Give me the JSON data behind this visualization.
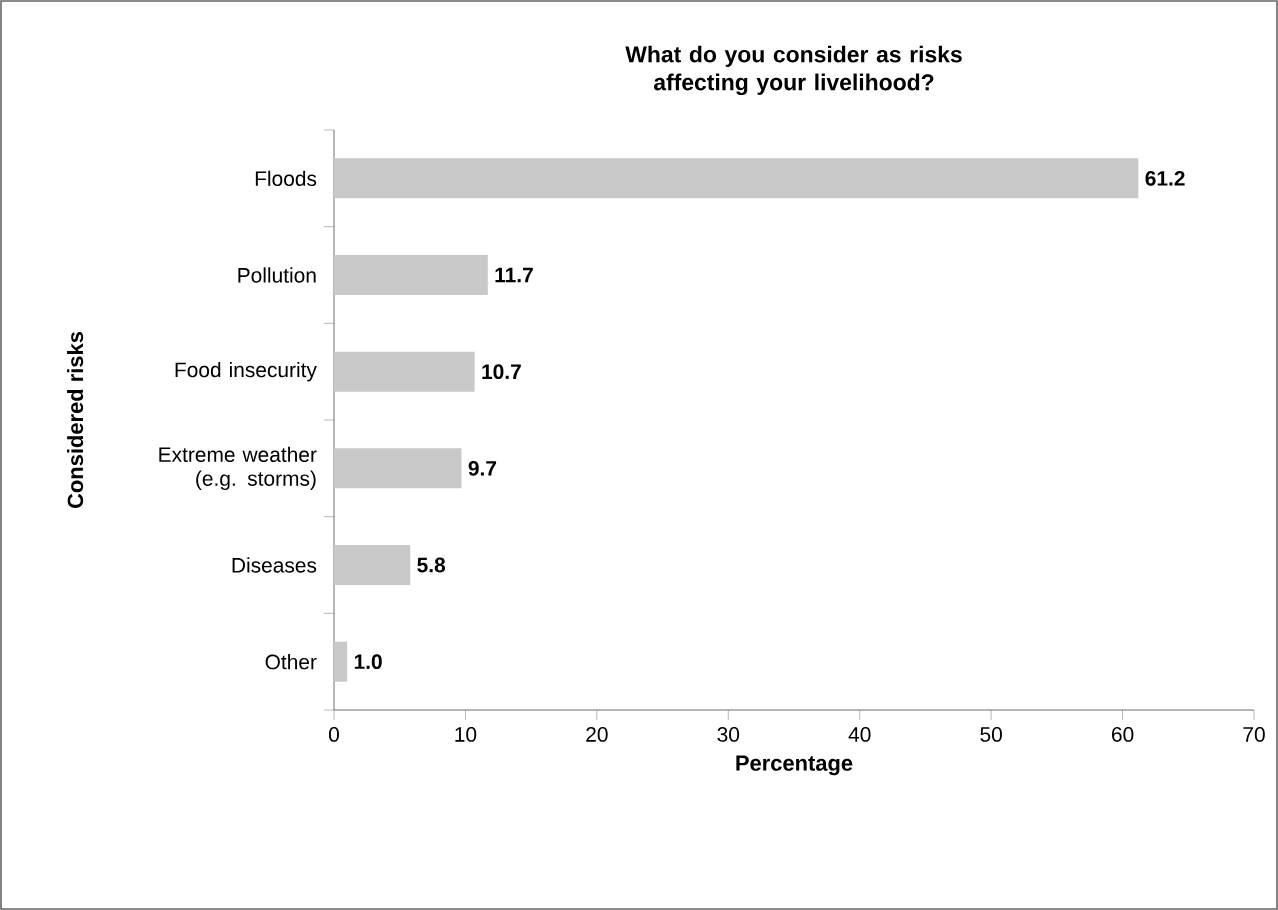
{
  "chart_data": {
    "type": "bar",
    "orientation": "horizontal",
    "title": "What do you consider as risks affecting your livelihood?",
    "xlabel": "Percentage",
    "ylabel": "Considered risks",
    "categories": [
      "Floods",
      "Pollution",
      "Food insecurity",
      "Extreme weather (e.g. storms)",
      "Diseases",
      "Other"
    ],
    "values": [
      61.2,
      11.7,
      10.7,
      9.7,
      5.8,
      1.0
    ],
    "value_labels": [
      "61.2",
      "11.7",
      "10.7",
      "9.7",
      "5.8",
      "1.0"
    ],
    "color": "#c8c8c8",
    "xlim": [
      0,
      70
    ],
    "xticks": [
      0,
      10,
      20,
      30,
      40,
      50,
      60,
      70
    ],
    "grid": false
  }
}
